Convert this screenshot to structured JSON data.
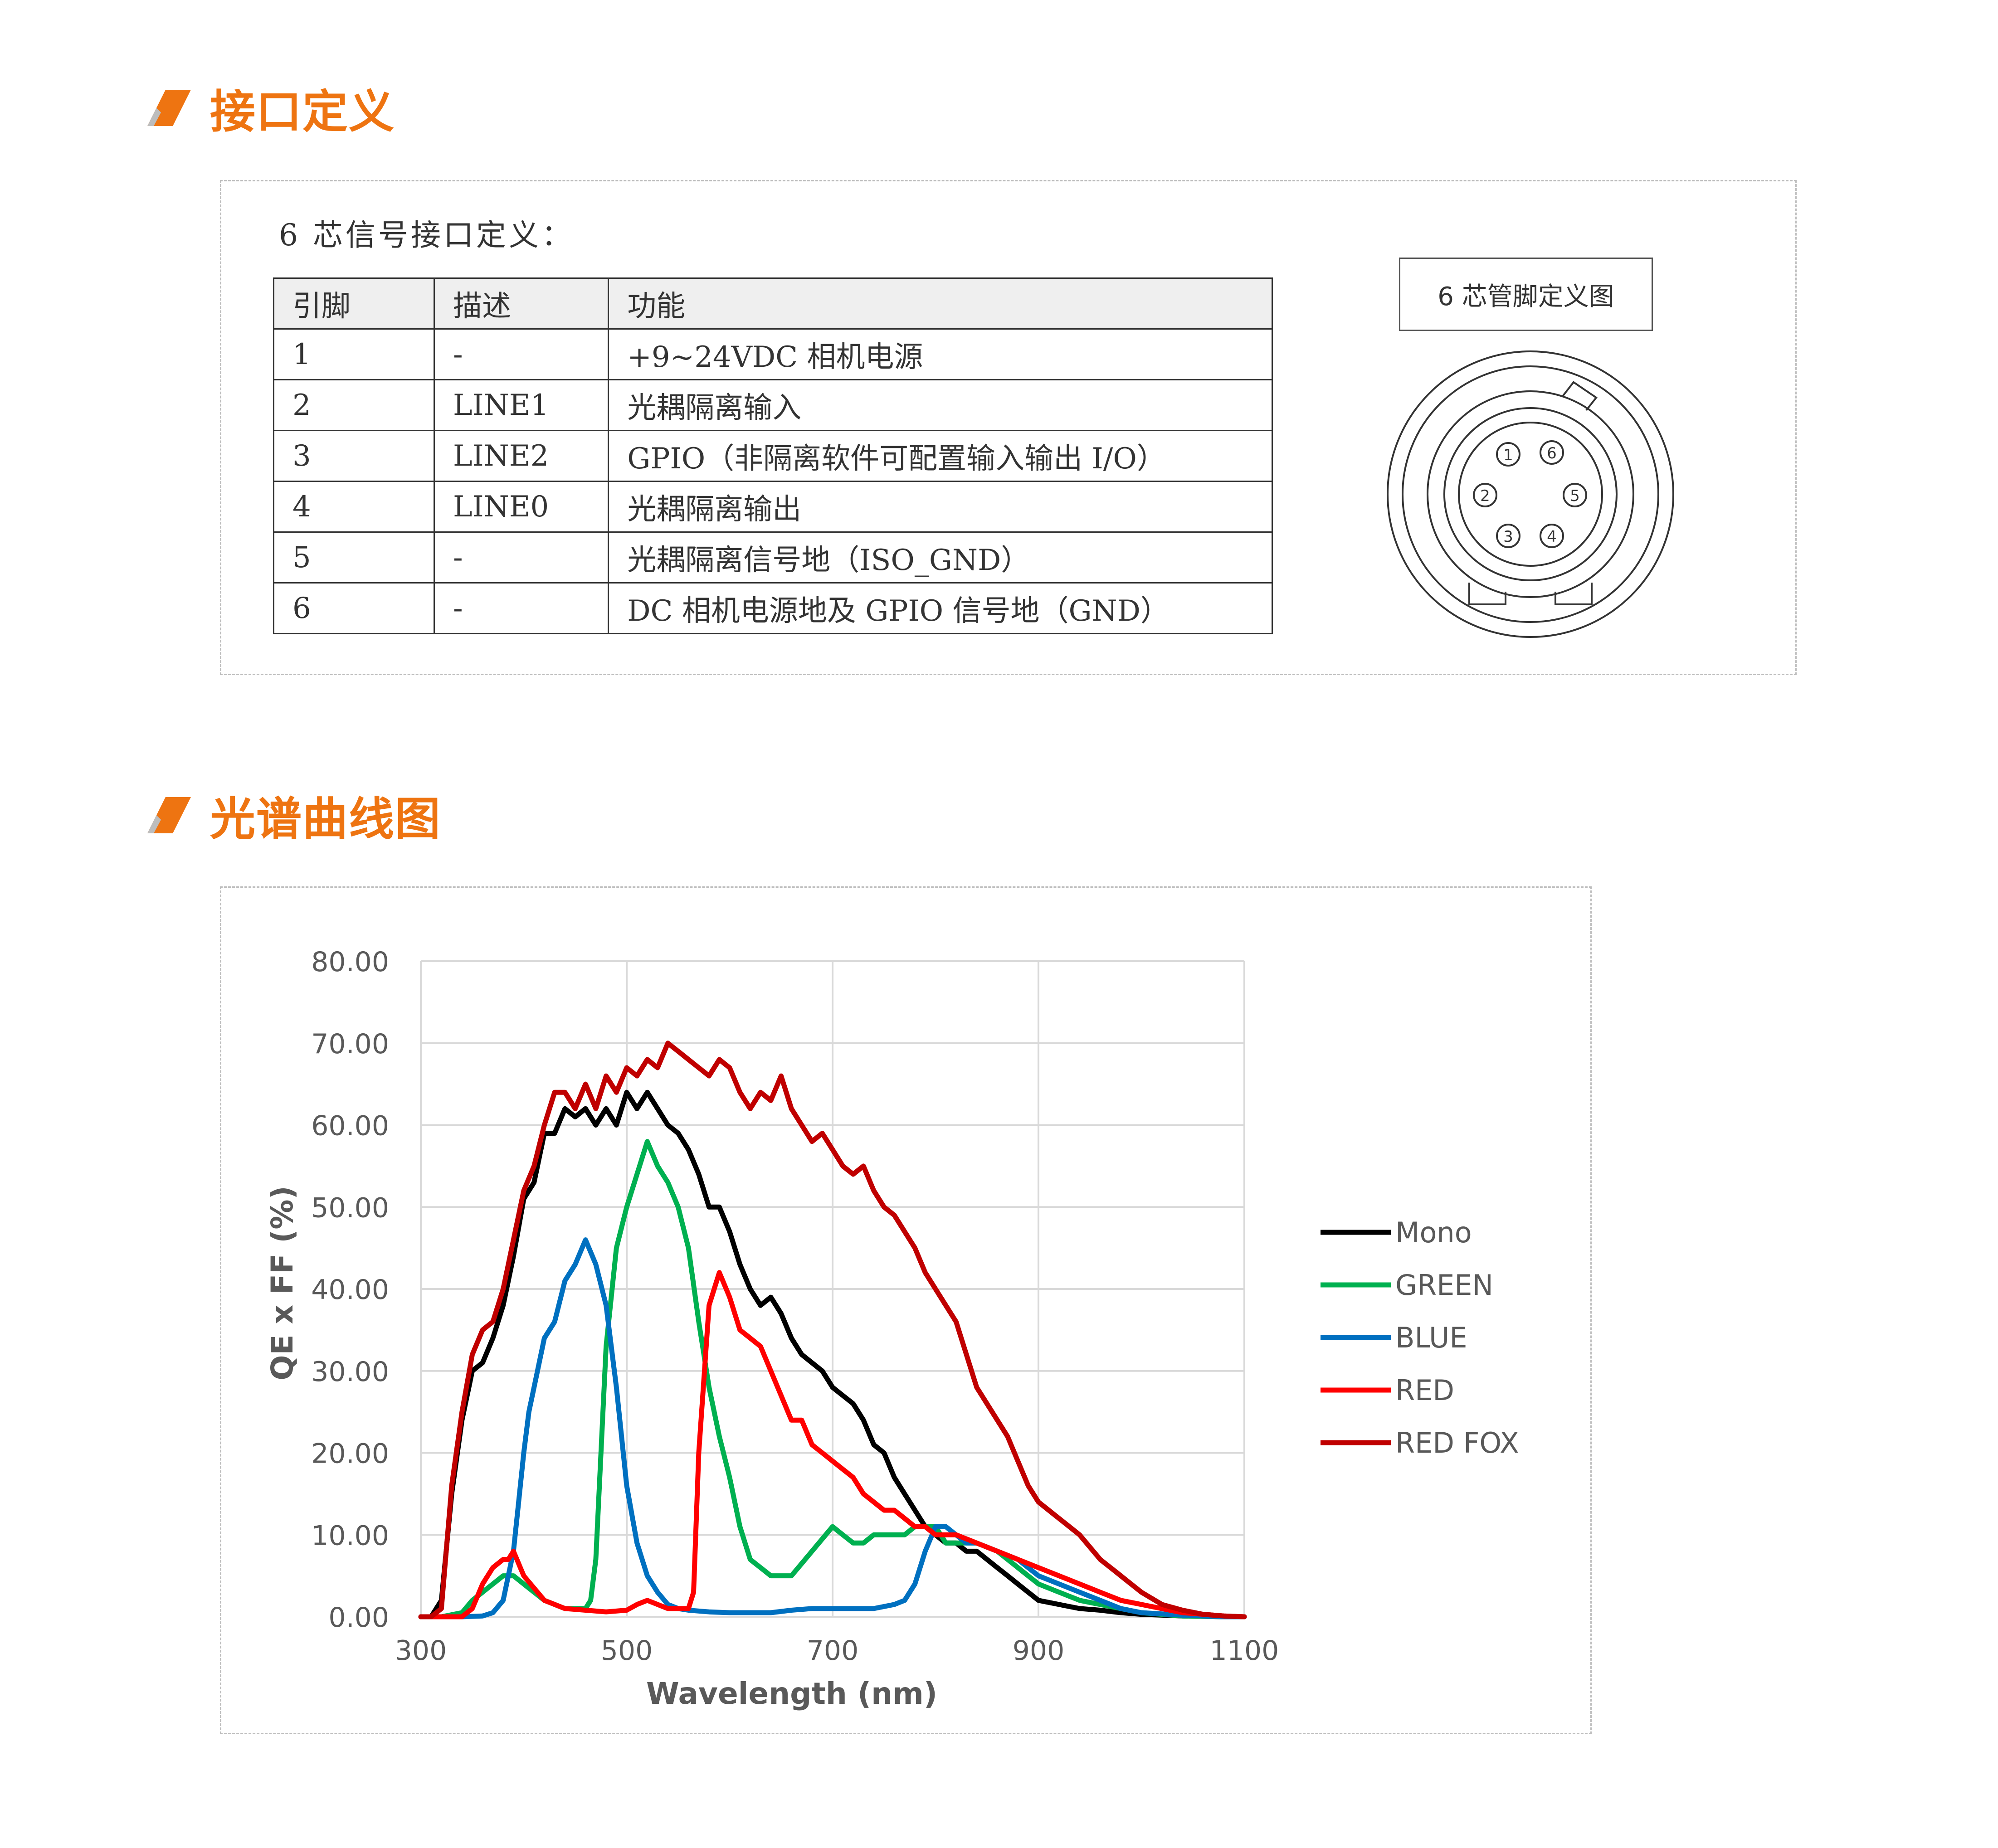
{
  "sections": {
    "interface_title": "接口定义",
    "spectrum_title": "光谱曲线图"
  },
  "accent_color": "#ee7411",
  "interface": {
    "intro": "6 芯信号接口定义：",
    "headers": [
      "引脚",
      "描述",
      "功能"
    ],
    "rows": [
      [
        "1",
        "-",
        "+9~24VDC 相机电源"
      ],
      [
        "2",
        "LINE1",
        "光耦隔离输入"
      ],
      [
        "3",
        "LINE2",
        "GPIO（非隔离软件可配置输入输出 I/O）"
      ],
      [
        "4",
        "LINE0",
        "光耦隔离输出"
      ],
      [
        "5",
        "-",
        "光耦隔离信号地（ISO_GND）"
      ],
      [
        "6",
        "-",
        "DC 相机电源地及 GPIO 信号地（GND）"
      ]
    ],
    "diagram_label": "6 芯管脚定义图",
    "pin_numbers": [
      "1",
      "2",
      "3",
      "4",
      "5",
      "6"
    ]
  },
  "chart_data": {
    "type": "line",
    "title": "",
    "xlabel": "Wavelength (nm)",
    "ylabel": "QE x FF (%)",
    "xlim": [
      300,
      1100
    ],
    "ylim": [
      0,
      80
    ],
    "xticks": [
      "300",
      "500",
      "700",
      "900",
      "1100"
    ],
    "yticks": [
      "0.00",
      "10.00",
      "20.00",
      "30.00",
      "40.00",
      "50.00",
      "60.00",
      "70.00",
      "80.00"
    ],
    "grid": true,
    "legend_position": "right",
    "series": [
      {
        "name": "Mono",
        "color": "#000000",
        "x": [
          300,
          310,
          320,
          330,
          340,
          350,
          360,
          370,
          380,
          390,
          400,
          410,
          420,
          430,
          440,
          450,
          460,
          470,
          480,
          490,
          500,
          510,
          520,
          530,
          540,
          550,
          560,
          570,
          580,
          590,
          600,
          610,
          620,
          630,
          640,
          650,
          660,
          670,
          680,
          690,
          700,
          710,
          720,
          730,
          740,
          750,
          760,
          770,
          780,
          790,
          800,
          810,
          820,
          830,
          840,
          850,
          860,
          870,
          880,
          890,
          900,
          920,
          940,
          960,
          980,
          1000,
          1020,
          1040,
          1060,
          1080,
          1100
        ],
        "y": [
          0,
          0,
          2,
          15,
          24,
          30,
          31,
          34,
          38,
          44,
          51,
          53,
          59,
          59,
          62,
          61,
          62,
          60,
          62,
          60,
          64,
          62,
          64,
          62,
          60,
          59,
          57,
          54,
          50,
          50,
          47,
          43,
          40,
          38,
          39,
          37,
          34,
          32,
          31,
          30,
          28,
          27,
          26,
          24,
          21,
          20,
          17,
          15,
          13,
          11,
          10,
          9,
          9,
          8,
          8,
          7,
          6,
          5,
          4,
          3,
          2,
          1.5,
          1,
          0.8,
          0.5,
          0.3,
          0.2,
          0.1,
          0.05,
          0,
          0
        ]
      },
      {
        "name": "GREEN",
        "color": "#00b050",
        "x": [
          300,
          320,
          340,
          350,
          360,
          370,
          380,
          390,
          400,
          420,
          440,
          450,
          460,
          465,
          470,
          480,
          490,
          500,
          510,
          520,
          530,
          540,
          550,
          560,
          570,
          580,
          590,
          600,
          610,
          620,
          640,
          660,
          680,
          700,
          710,
          720,
          730,
          740,
          750,
          760,
          770,
          780,
          790,
          800,
          810,
          820,
          830,
          840,
          860,
          880,
          900,
          920,
          940,
          960,
          980,
          1000,
          1040,
          1080,
          1100
        ],
        "y": [
          0,
          0,
          0.5,
          2,
          3,
          4,
          5,
          5,
          4,
          2,
          1,
          1,
          1,
          2,
          7,
          33,
          45,
          50,
          54,
          58,
          55,
          53,
          50,
          45,
          36,
          28,
          22,
          17,
          11,
          7,
          5,
          5,
          8,
          11,
          10,
          9,
          9,
          10,
          10,
          10,
          10,
          11,
          11,
          11,
          9,
          9,
          9,
          9,
          8,
          6,
          4,
          3,
          2,
          1.5,
          1,
          0.5,
          0.1,
          0,
          0
        ]
      },
      {
        "name": "BLUE",
        "color": "#0070c0",
        "x": [
          300,
          340,
          360,
          370,
          380,
          390,
          395,
          400,
          405,
          410,
          420,
          430,
          440,
          450,
          460,
          470,
          480,
          490,
          500,
          510,
          520,
          530,
          540,
          550,
          560,
          580,
          600,
          620,
          640,
          660,
          680,
          700,
          720,
          740,
          760,
          770,
          780,
          790,
          800,
          810,
          820,
          830,
          840,
          860,
          880,
          900,
          920,
          940,
          960,
          980,
          1000,
          1040,
          1080,
          1100
        ],
        "y": [
          0,
          0,
          0.1,
          0.5,
          2,
          8,
          14,
          20,
          25,
          28,
          34,
          36,
          41,
          43,
          46,
          43,
          38,
          28,
          16,
          9,
          5,
          3,
          1.5,
          1,
          0.8,
          0.6,
          0.5,
          0.5,
          0.5,
          0.8,
          1,
          1,
          1,
          1,
          1.5,
          2,
          4,
          8,
          11,
          11,
          10,
          9,
          9,
          8,
          7,
          5,
          4,
          3,
          2,
          1,
          0.5,
          0.2,
          0,
          0
        ]
      },
      {
        "name": "RED",
        "color": "#ff0000",
        "x": [
          300,
          340,
          350,
          360,
          370,
          380,
          385,
          390,
          400,
          420,
          440,
          460,
          480,
          500,
          510,
          520,
          530,
          540,
          550,
          560,
          565,
          570,
          580,
          590,
          600,
          610,
          620,
          630,
          640,
          650,
          660,
          670,
          680,
          690,
          700,
          710,
          720,
          730,
          740,
          750,
          760,
          770,
          780,
          790,
          800,
          820,
          840,
          860,
          880,
          900,
          920,
          940,
          960,
          980,
          1000,
          1040,
          1080,
          1100
        ],
        "y": [
          0,
          0,
          1,
          4,
          6,
          7,
          7,
          8,
          5,
          2,
          1,
          0.8,
          0.6,
          0.8,
          1.5,
          2,
          1.5,
          1,
          1,
          1,
          3,
          20,
          38,
          42,
          39,
          35,
          34,
          33,
          30,
          27,
          24,
          24,
          21,
          20,
          19,
          18,
          17,
          15,
          14,
          13,
          13,
          12,
          11,
          11,
          10,
          10,
          9,
          8,
          7,
          6,
          5,
          4,
          3,
          2,
          1.5,
          0.5,
          0.1,
          0
        ]
      },
      {
        "name": "RED FOX",
        "color": "#c00000",
        "x": [
          300,
          310,
          320,
          330,
          340,
          350,
          360,
          370,
          380,
          390,
          400,
          410,
          420,
          430,
          440,
          450,
          460,
          470,
          480,
          490,
          500,
          510,
          520,
          530,
          540,
          550,
          560,
          570,
          580,
          590,
          600,
          610,
          620,
          630,
          640,
          650,
          660,
          670,
          680,
          690,
          700,
          710,
          720,
          730,
          740,
          750,
          760,
          770,
          780,
          790,
          800,
          810,
          820,
          830,
          840,
          850,
          860,
          870,
          880,
          890,
          900,
          920,
          940,
          960,
          980,
          1000,
          1020,
          1040,
          1060,
          1080,
          1100
        ],
        "y": [
          0,
          0,
          1,
          16,
          25,
          32,
          35,
          36,
          40,
          46,
          52,
          55,
          60,
          64,
          64,
          62,
          65,
          62,
          66,
          64,
          67,
          66,
          68,
          67,
          70,
          69,
          68,
          67,
          66,
          68,
          67,
          64,
          62,
          64,
          63,
          66,
          62,
          60,
          58,
          59,
          57,
          55,
          54,
          55,
          52,
          50,
          49,
          47,
          45,
          42,
          40,
          38,
          36,
          32,
          28,
          26,
          24,
          22,
          19,
          16,
          14,
          12,
          10,
          7,
          5,
          3,
          1.5,
          0.8,
          0.3,
          0.1,
          0
        ]
      }
    ]
  }
}
